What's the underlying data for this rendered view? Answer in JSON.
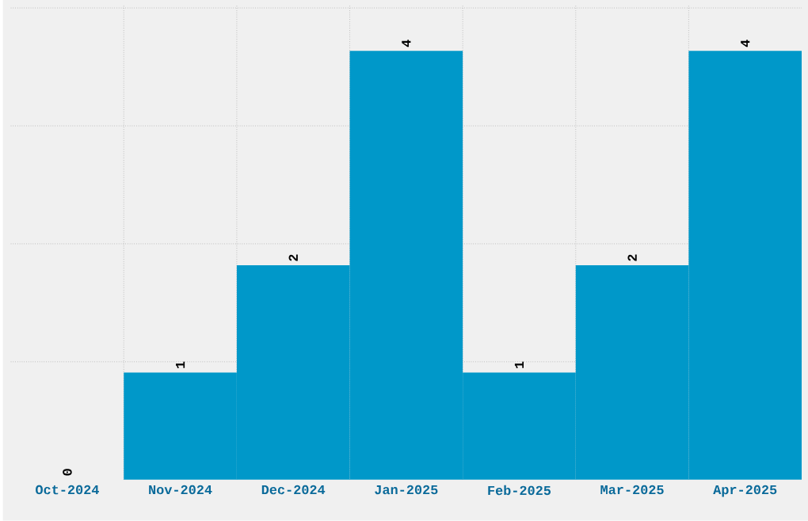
{
  "chart_data": {
    "type": "bar",
    "categories": [
      "Oct-2024",
      "Nov-2024",
      "Dec-2024",
      "Jan-2025",
      "Feb-2025",
      "Mar-2025",
      "Apr-2025"
    ],
    "values": [
      0,
      1,
      2,
      4,
      1,
      2,
      4
    ],
    "color": "#0098c9",
    "ylim": [
      0,
      4.43
    ],
    "yticks": [
      {
        "value": 1.1,
        "label": null
      },
      {
        "value": 2.2,
        "label": null
      },
      {
        "value": 3.3,
        "label": null
      },
      {
        "value": 4.4,
        "label": null
      }
    ],
    "tick_labels": "x",
    "grid": true,
    "data_labels": true
  }
}
